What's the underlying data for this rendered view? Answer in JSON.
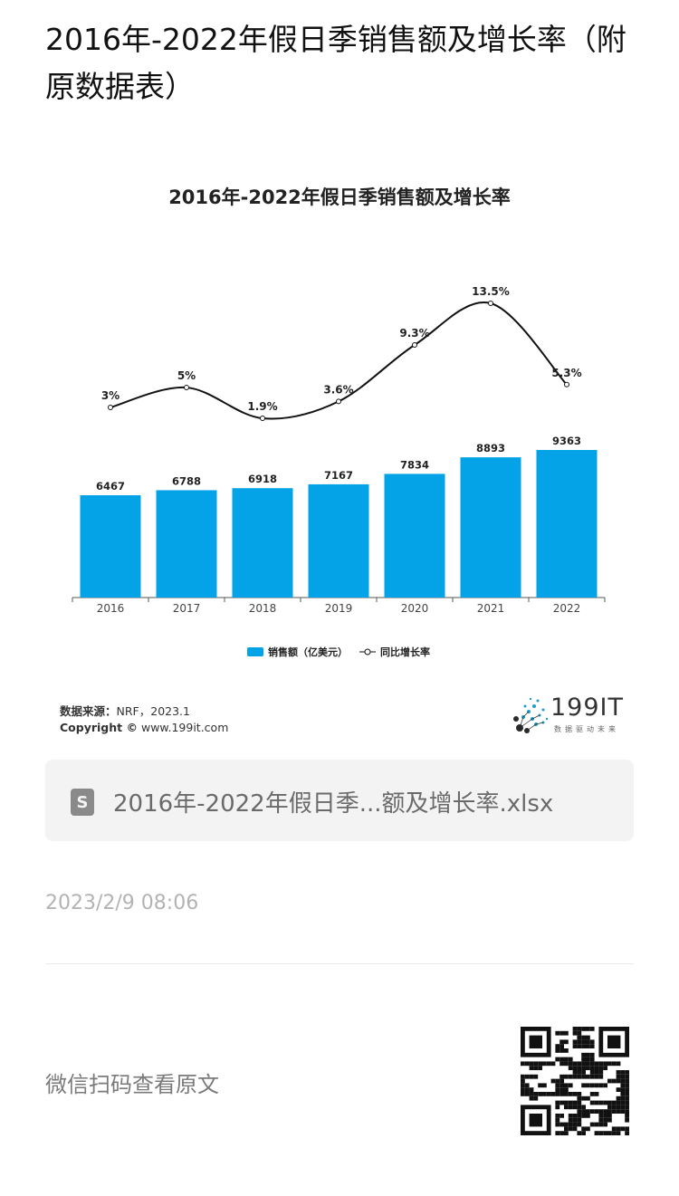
{
  "article": {
    "title": "2016年-2022年假日季销售额及增长率（附原数据表）"
  },
  "chart_data": {
    "type": "bar",
    "title": "2016年-2022年假日季销售额及增长率",
    "categories": [
      "2016",
      "2017",
      "2018",
      "2019",
      "2020",
      "2021",
      "2022"
    ],
    "series": [
      {
        "name": "销售额（亿美元）",
        "type": "bar",
        "values": [
          6467,
          6788,
          6918,
          7167,
          7834,
          8893,
          9363
        ],
        "color": "#04a2e6"
      },
      {
        "name": "同比增长率",
        "type": "line",
        "values": [
          3,
          5,
          1.9,
          3.6,
          9.3,
          13.5,
          5.3
        ],
        "labels": [
          "3%",
          "5%",
          "1.9%",
          "3.6%",
          "9.3%",
          "13.5%",
          "5.3%"
        ],
        "color": "#111111"
      }
    ],
    "legend": "bottom-center",
    "grid": false
  },
  "source": {
    "label": "数据来源：",
    "text": "NRF，2023.1",
    "copyright_label": "Copyright ©",
    "copyright_text": "www.199it.com"
  },
  "logo": {
    "text": "199IT",
    "sub": "数据驱动未来"
  },
  "file": {
    "name": "2016年-2022年假日季...额及增长率.xlsx",
    "icon": "spreadsheet-icon"
  },
  "timestamp": "2023/2/9 08:06",
  "qr": {
    "label": "微信扫码查看原文",
    "icon": "qr-code-icon"
  }
}
